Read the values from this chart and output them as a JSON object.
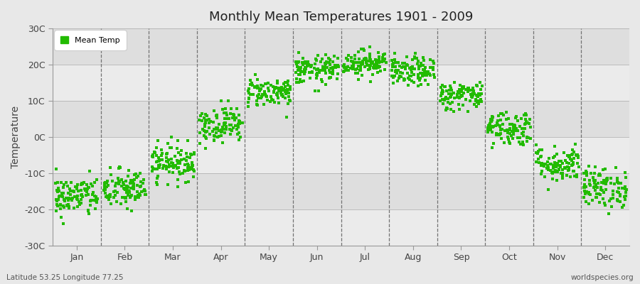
{
  "title": "Monthly Mean Temperatures 1901 - 2009",
  "ylabel": "Temperature",
  "xlabel_bottom_left": "Latitude 53.25 Longitude 77.25",
  "xlabel_bottom_right": "worldspecies.org",
  "legend_label": "Mean Temp",
  "dot_color": "#22bb00",
  "bg_color": "#e8e8e8",
  "plot_bg_color": "#ebebeb",
  "band_light": "#ebebeb",
  "band_dark": "#dedede",
  "ylim": [
    -30,
    30
  ],
  "yticks": [
    -30,
    -20,
    -10,
    0,
    10,
    20,
    30
  ],
  "ytick_labels": [
    "-30C",
    "-20C",
    "-10C",
    "0C",
    "10C",
    "20C",
    "30C"
  ],
  "months": [
    "Jan",
    "Feb",
    "Mar",
    "Apr",
    "May",
    "Jun",
    "Jul",
    "Aug",
    "Sep",
    "Oct",
    "Nov",
    "Dec"
  ],
  "month_centers": [
    0.5,
    1.5,
    2.5,
    3.5,
    4.5,
    5.5,
    6.5,
    7.5,
    8.5,
    9.5,
    10.5,
    11.5
  ],
  "month_boundaries": [
    0,
    1,
    2,
    3,
    4,
    5,
    6,
    7,
    8,
    9,
    10,
    11,
    12
  ],
  "monthly_means": [
    -16.5,
    -14.5,
    -7.0,
    3.5,
    12.5,
    18.5,
    20.5,
    18.0,
    11.5,
    2.5,
    -7.5,
    -14.0
  ],
  "monthly_stds": [
    2.8,
    2.8,
    2.5,
    2.5,
    2.0,
    2.0,
    1.8,
    2.0,
    2.0,
    2.5,
    2.5,
    2.8
  ],
  "n_years": 109,
  "seed": 42
}
